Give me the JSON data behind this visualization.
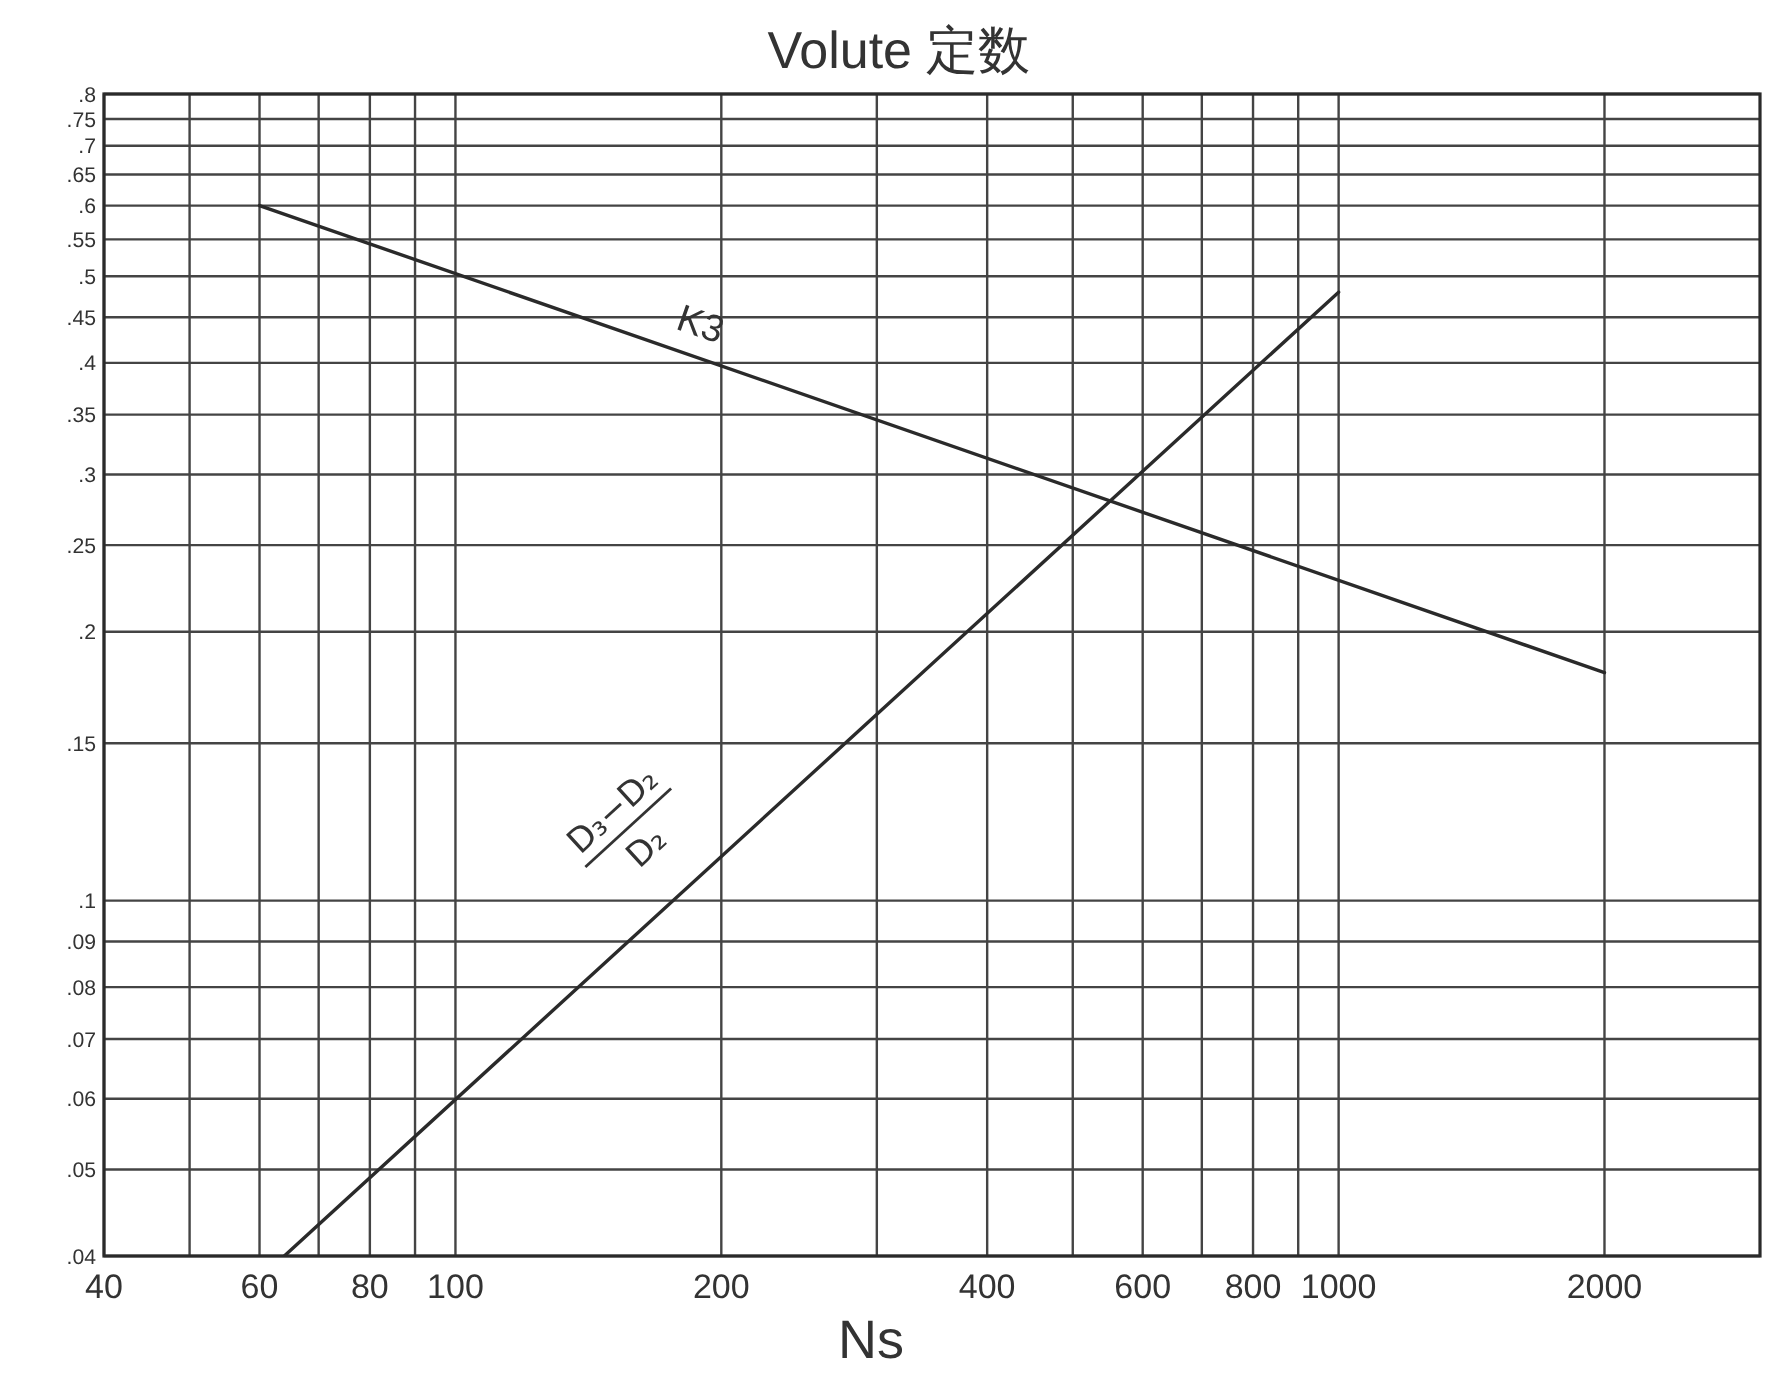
{
  "chart_data": {
    "type": "line",
    "title": "Volute 定数",
    "xlabel": "Ns",
    "log": "xy",
    "xlim": [
      40,
      3000
    ],
    "ylim": [
      0.04,
      0.8
    ],
    "xticks": [
      40,
      {
        "value": 50,
        "label": null
      },
      60,
      {
        "value": 70,
        "label": null
      },
      80,
      {
        "value": 90,
        "label": null
      },
      100,
      200,
      {
        "value": 300,
        "label": null
      },
      400,
      {
        "value": 500,
        "label": null
      },
      600,
      {
        "value": 700,
        "label": null
      },
      800,
      {
        "value": 900,
        "label": null
      },
      1000,
      2000
    ],
    "yticks": [
      {
        "value": 0.04,
        "label": ".04"
      },
      {
        "value": 0.05,
        "label": ".05"
      },
      {
        "value": 0.06,
        "label": ".06"
      },
      {
        "value": 0.07,
        "label": ".07"
      },
      {
        "value": 0.08,
        "label": ".08"
      },
      {
        "value": 0.09,
        "label": ".09"
      },
      {
        "value": 0.1,
        "label": ".1"
      },
      {
        "value": 0.15,
        "label": ".15"
      },
      {
        "value": 0.2,
        "label": ".2"
      },
      {
        "value": 0.25,
        "label": ".25"
      },
      {
        "value": 0.3,
        "label": ".3"
      },
      {
        "value": 0.35,
        "label": ".35"
      },
      {
        "value": 0.4,
        "label": ".4"
      },
      {
        "value": 0.45,
        "label": ".45"
      },
      {
        "value": 0.5,
        "label": ".5"
      },
      {
        "value": 0.55,
        "label": ".55"
      },
      {
        "value": 0.6,
        "label": ".6"
      },
      {
        "value": 0.65,
        "label": ".65"
      },
      {
        "value": 0.7,
        "label": ".7"
      },
      {
        "value": 0.75,
        "label": ".75"
      },
      {
        "value": 0.8,
        "label": ".8"
      }
    ],
    "grid": true,
    "marker": "none",
    "line_style": "solid",
    "series": [
      {
        "name": "K3",
        "color": "#2a2a2a",
        "x": [
          60,
          2000
        ],
        "values": [
          0.6,
          0.18
        ]
      },
      {
        "name": "D₃−D₂\nD₂",
        "color": "#2a2a2a",
        "x": [
          64,
          1000
        ],
        "values": [
          0.04,
          0.48
        ]
      }
    ]
  }
}
